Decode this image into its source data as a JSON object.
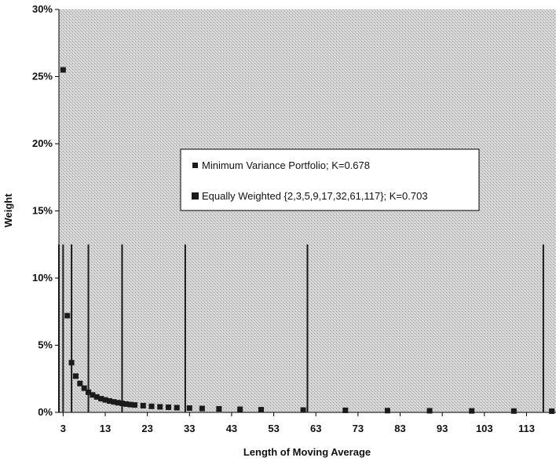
{
  "colors": {
    "plot_background": "#c8c8c8",
    "series_fill": "#1a1a1a",
    "legend_background": "#ffffff"
  },
  "chart_data": {
    "type": "scatter",
    "title": "",
    "xlabel": "Length of Moving Average",
    "ylabel": "Weight",
    "xlim": [
      2,
      120
    ],
    "ylim": [
      0,
      30
    ],
    "y_unit": "%",
    "xticks": [
      3,
      13,
      23,
      33,
      43,
      53,
      63,
      73,
      83,
      93,
      103,
      113
    ],
    "yticks": [
      0,
      5,
      10,
      15,
      20,
      25,
      30
    ],
    "ytick_labels": [
      "0%",
      "5%",
      "10%",
      "15%",
      "20%",
      "25%",
      "30%"
    ],
    "grid": false,
    "legend_position": "center",
    "series": [
      {
        "name": "Minimum Variance Portfolio; K=0.678",
        "kind": "points",
        "x": [
          3,
          4,
          5,
          6,
          7,
          8,
          9,
          10,
          11,
          12,
          13,
          14,
          15,
          16,
          17,
          18,
          19,
          20,
          22,
          24,
          26,
          28,
          30,
          33,
          36,
          40,
          45,
          50,
          60,
          70,
          80,
          90,
          100,
          110,
          119
        ],
        "values": [
          25.5,
          7.2,
          3.7,
          2.7,
          2.15,
          1.8,
          1.5,
          1.3,
          1.15,
          1.02,
          0.93,
          0.85,
          0.78,
          0.72,
          0.67,
          0.62,
          0.58,
          0.55,
          0.5,
          0.45,
          0.41,
          0.38,
          0.35,
          0.32,
          0.29,
          0.26,
          0.23,
          0.2,
          0.17,
          0.15,
          0.13,
          0.12,
          0.11,
          0.1,
          0.09
        ]
      },
      {
        "name": "Equally Weighted {2,3,5,9,17,32,61,117}; K=0.703",
        "kind": "bars",
        "x": [
          2,
          3,
          5,
          9,
          17,
          32,
          61,
          117
        ],
        "values": [
          12.5,
          12.5,
          12.5,
          12.5,
          12.5,
          12.5,
          12.5,
          12.5
        ]
      }
    ]
  }
}
